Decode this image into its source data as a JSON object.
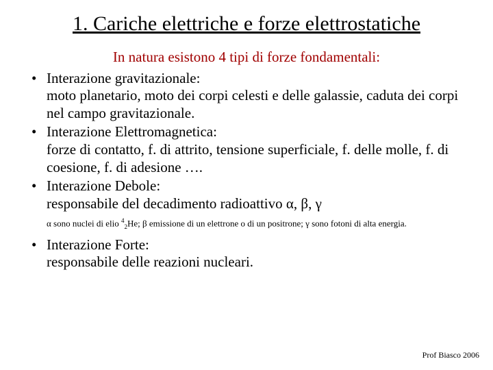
{
  "title": "1. Cariche elettriche e forze elettrostatiche",
  "intro": "In natura esistono 4 tipi di forze fondamentali:",
  "bullets": {
    "b1": "Interazione gravitazionale:\nmoto planetario, moto dei corpi celesti e delle galassie, caduta dei corpi nel campo gravitazionale.",
    "b2": "Interazione Elettromagnetica:\nforze di contatto, f. di attrito, tensione superficiale, f. delle molle, f. di coesione, f. di adesione ….",
    "b3": "Interazione Debole:\nresponsabile del decadimento radioattivo  α,  β,  γ",
    "b4": "Interazione Forte:\nresponsabile delle reazioni nucleari."
  },
  "subnote_parts": {
    "p1": "α sono nuclei di elio ",
    "he_sup": "4",
    "he_sub": "2",
    "he_sym": "He;   ",
    "p2": "β emissione di un elettrone o di un positrone;   ",
    "p3": "γ sono fotoni di alta energia."
  },
  "footer": "Prof Biasco 2006",
  "colors": {
    "intro": "#a00000",
    "text": "#000000",
    "background": "#ffffff"
  },
  "fontsizes": {
    "title": 30,
    "body": 21,
    "subnote": 13,
    "footer": 12
  }
}
